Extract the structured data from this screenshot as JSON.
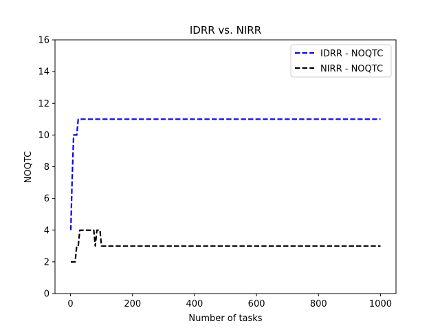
{
  "chart_data": {
    "type": "line",
    "title": "IDRR vs. NIRR",
    "xlabel": "Number of tasks",
    "ylabel": "NOQTC",
    "xlim": [
      -50,
      1050
    ],
    "ylim": [
      0,
      16
    ],
    "xticks": [
      0,
      200,
      400,
      600,
      800,
      1000
    ],
    "yticks": [
      0,
      2,
      4,
      6,
      8,
      10,
      12,
      14,
      16
    ],
    "grid": false,
    "legend_position": "top-right",
    "series": [
      {
        "name": "IDRR - NOQTC",
        "color": "#0000ff",
        "style": "dashed",
        "x": [
          1,
          5,
          10,
          15,
          20,
          25,
          30,
          35,
          40,
          1000
        ],
        "y": [
          4,
          7,
          10,
          10,
          10,
          11,
          11,
          11,
          11,
          11
        ]
      },
      {
        "name": "NIRR - NOQTC",
        "color": "#000000",
        "style": "dashed",
        "x": [
          1,
          5,
          10,
          15,
          20,
          25,
          30,
          35,
          40,
          50,
          60,
          70,
          75,
          80,
          85,
          90,
          95,
          100,
          1000
        ],
        "y": [
          2,
          2,
          2,
          2,
          3,
          3,
          4,
          4,
          4,
          4,
          4,
          4,
          4,
          3,
          4,
          4,
          4,
          3,
          3
        ]
      }
    ]
  }
}
